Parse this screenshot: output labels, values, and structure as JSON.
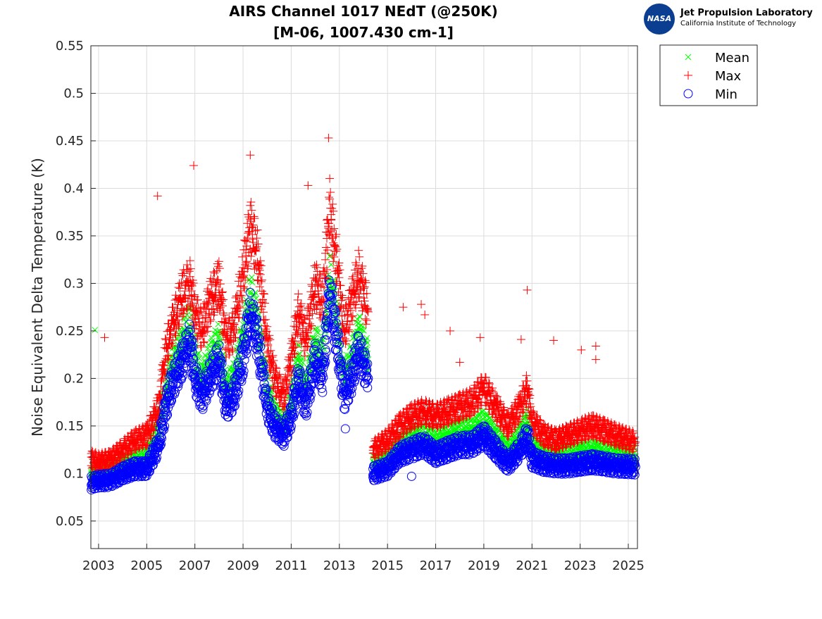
{
  "logo": {
    "line1": "Jet Propulsion Laboratory",
    "line2": "California Institute of Technology",
    "emblem": "NASA"
  },
  "chart_data": {
    "type": "scatter",
    "title": "AIRS Channel 1017 NEdT (@250K)",
    "subtitle": "[M-06, 1007.430 cm-1]",
    "xlabel": "",
    "ylabel": "Noise Equivalent Delta Temperature (K)",
    "xlim": [
      2002.68,
      2025.38
    ],
    "ylim": [
      0.021,
      0.55
    ],
    "xticks": [
      "2003",
      "2005",
      "2007",
      "2009",
      "2011",
      "2013",
      "2015",
      "2017",
      "2019",
      "2021",
      "2023",
      "2025"
    ],
    "yticks": [
      "0.05",
      "0.1",
      "0.15",
      "0.2",
      "0.25",
      "0.3",
      "0.35",
      "0.4",
      "0.45",
      "0.5",
      "0.55"
    ],
    "grid": true,
    "legend_position": "outside-top-right",
    "colors": {
      "Mean": "#00ff00",
      "Max": "#ff0000",
      "Min": "#0000ff"
    },
    "markers": {
      "Mean": "x",
      "Max": "+",
      "Min": "o"
    },
    "x": [
      2002.7,
      2003.0,
      2003.5,
      2004.0,
      2004.5,
      2005.0,
      2005.5,
      2005.8,
      2006.0,
      2006.5,
      2006.8,
      2007.0,
      2007.3,
      2007.6,
      2008.0,
      2008.3,
      2008.6,
      2009.0,
      2009.3,
      2009.6,
      2010.0,
      2010.3,
      2010.7,
      2011.0,
      2011.3,
      2011.6,
      2012.0,
      2012.3,
      2012.6,
      2012.9,
      2013.2,
      2013.5,
      2013.8,
      2014.2,
      2014.4,
      2015.0,
      2015.5,
      2016.0,
      2016.5,
      2017.0,
      2017.5,
      2018.0,
      2018.5,
      2019.0,
      2019.5,
      2020.0,
      2020.5,
      2020.8,
      2021.0,
      2021.5,
      2022.0,
      2022.5,
      2023.0,
      2023.5,
      2024.0,
      2024.5,
      2025.3
    ],
    "series": [
      {
        "name": "Mean",
        "values": [
          0.1,
          0.1,
          0.102,
          0.11,
          0.115,
          0.118,
          0.15,
          0.19,
          0.21,
          0.24,
          0.26,
          0.22,
          0.2,
          0.22,
          0.24,
          0.19,
          0.2,
          0.245,
          0.29,
          0.26,
          0.19,
          0.165,
          0.15,
          0.175,
          0.22,
          0.19,
          0.24,
          0.22,
          0.31,
          0.26,
          0.2,
          0.22,
          0.25,
          0.22,
          0.11,
          0.115,
          0.13,
          0.138,
          0.14,
          0.135,
          0.14,
          0.145,
          0.145,
          0.155,
          0.14,
          0.125,
          0.14,
          0.155,
          0.13,
          0.12,
          0.118,
          0.12,
          0.122,
          0.125,
          0.122,
          0.12,
          0.118
        ],
        "outliers": [
          [
            2002.85,
            0.251
          ]
        ]
      },
      {
        "name": "Max",
        "values": [
          0.115,
          0.112,
          0.115,
          0.125,
          0.135,
          0.14,
          0.17,
          0.23,
          0.25,
          0.29,
          0.3,
          0.27,
          0.25,
          0.28,
          0.3,
          0.24,
          0.25,
          0.31,
          0.36,
          0.33,
          0.24,
          0.2,
          0.18,
          0.22,
          0.27,
          0.24,
          0.3,
          0.28,
          0.38,
          0.32,
          0.25,
          0.28,
          0.31,
          0.27,
          0.125,
          0.135,
          0.15,
          0.16,
          0.165,
          0.16,
          0.165,
          0.17,
          0.175,
          0.19,
          0.17,
          0.15,
          0.17,
          0.19,
          0.155,
          0.14,
          0.135,
          0.14,
          0.145,
          0.15,
          0.145,
          0.14,
          0.133
        ],
        "outliers": [
          [
            2003.25,
            0.243
          ],
          [
            2005.45,
            0.392
          ],
          [
            2006.95,
            0.424
          ],
          [
            2009.3,
            0.435
          ],
          [
            2011.7,
            0.403
          ],
          [
            2012.55,
            0.453
          ],
          [
            2015.65,
            0.275
          ],
          [
            2016.4,
            0.278
          ],
          [
            2016.55,
            0.267
          ],
          [
            2017.6,
            0.25
          ],
          [
            2018.0,
            0.217
          ],
          [
            2018.85,
            0.243
          ],
          [
            2020.55,
            0.241
          ],
          [
            2020.8,
            0.293
          ],
          [
            2021.9,
            0.24
          ],
          [
            2023.05,
            0.23
          ],
          [
            2023.65,
            0.234
          ],
          [
            2023.65,
            0.22
          ]
        ]
      },
      {
        "name": "Min",
        "values": [
          0.09,
          0.092,
          0.093,
          0.1,
          0.105,
          0.105,
          0.13,
          0.17,
          0.19,
          0.22,
          0.24,
          0.2,
          0.18,
          0.2,
          0.22,
          0.17,
          0.18,
          0.22,
          0.27,
          0.24,
          0.17,
          0.15,
          0.14,
          0.16,
          0.2,
          0.17,
          0.22,
          0.2,
          0.29,
          0.24,
          0.18,
          0.2,
          0.23,
          0.2,
          0.1,
          0.105,
          0.12,
          0.125,
          0.13,
          0.12,
          0.125,
          0.13,
          0.13,
          0.14,
          0.125,
          0.11,
          0.125,
          0.14,
          0.115,
          0.11,
          0.108,
          0.108,
          0.11,
          0.112,
          0.11,
          0.108,
          0.107
        ],
        "outliers": [
          [
            2016.0,
            0.097
          ],
          [
            2013.25,
            0.147
          ]
        ]
      }
    ]
  }
}
